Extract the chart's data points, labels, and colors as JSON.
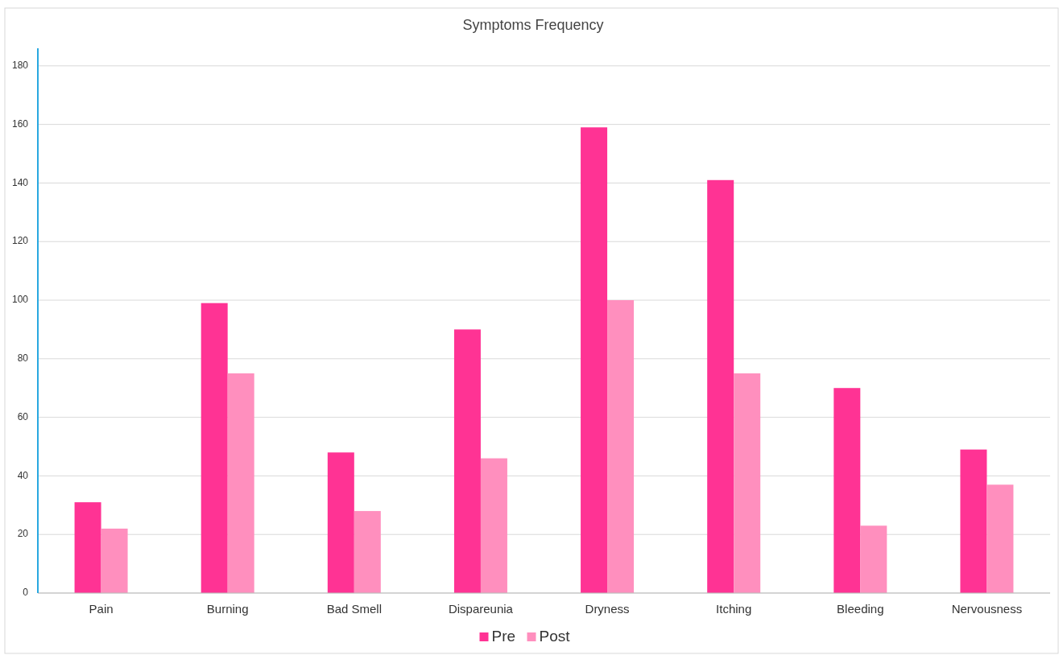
{
  "chart_data": {
    "type": "bar",
    "title": "Symptoms Frequency",
    "categories": [
      "Pain",
      "Burning",
      "Bad Smell",
      "Dispareunia",
      "Dryness",
      "Itching",
      "Bleeding",
      "Nervousness"
    ],
    "series": [
      {
        "name": "Pre",
        "color": "#ff3394",
        "values": [
          31,
          99,
          48,
          90,
          159,
          141,
          70,
          49
        ]
      },
      {
        "name": "Post",
        "color": "#ff8fbe",
        "values": [
          22,
          75,
          28,
          46,
          100,
          75,
          23,
          37
        ]
      }
    ],
    "ylim": [
      0,
      186
    ],
    "yticks": [
      0,
      20,
      40,
      60,
      80,
      100,
      120,
      140,
      160,
      180
    ],
    "grid": "y",
    "legend": "bottom"
  }
}
